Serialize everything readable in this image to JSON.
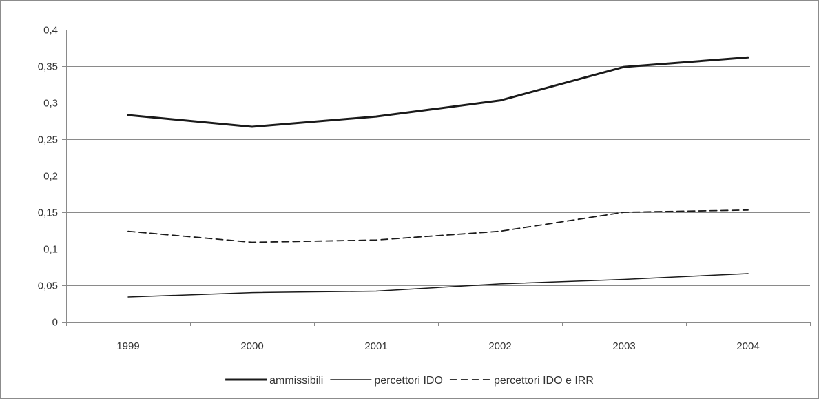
{
  "chart_data": {
    "type": "line",
    "title": "",
    "xlabel": "",
    "ylabel": "",
    "categories": [
      "1999",
      "2000",
      "2001",
      "2002",
      "2003",
      "2004"
    ],
    "ylim": [
      0,
      0.4
    ],
    "yticks": [
      0,
      0.05,
      0.1,
      0.15,
      0.2,
      0.25,
      0.3,
      0.35,
      0.4
    ],
    "ytick_labels": [
      "0",
      "0,05",
      "0,1",
      "0,15",
      "0,2",
      "0,25",
      "0,3",
      "0,35",
      "0,4"
    ],
    "grid": true,
    "legend_position": "bottom",
    "series": [
      {
        "name": "ammissibili",
        "style": "thick-solid",
        "color": "#1a1a1a",
        "values": [
          0.283,
          0.267,
          0.281,
          0.303,
          0.349,
          0.362
        ]
      },
      {
        "name": "percettori IDO",
        "style": "thin-solid",
        "color": "#1a1a1a",
        "values": [
          0.034,
          0.04,
          0.042,
          0.052,
          0.058,
          0.066
        ]
      },
      {
        "name": "percettori IDO e IRR",
        "style": "dashed",
        "color": "#1a1a1a",
        "values": [
          0.124,
          0.109,
          0.112,
          0.124,
          0.15,
          0.153
        ]
      }
    ]
  }
}
